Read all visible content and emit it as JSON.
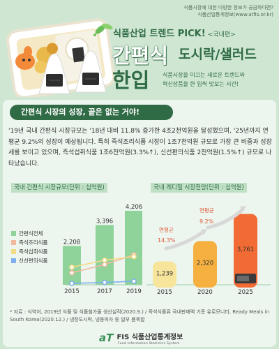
{
  "header": {
    "tagline": "식품시장에 대한 다양한 정보가 궁금하다면?",
    "site": "식품산업통계정보(www.atfis.or.kr)",
    "pick_label": "식품산업 트렌드 PICK!",
    "pick_tag": "<국내편>",
    "title_line1": "간편식",
    "title_line1_sub": "도시락/샐러드",
    "title_line2": "한입",
    "desc_line1": "식품시장을 이끄는 새로운 트렌드와",
    "desc_line2": "혁신상품을 한 입씩 맛보는 시간!"
  },
  "section_title": "간편식 시장의 성장, 끝은 없는 거야!",
  "paragraph": "'19년 국내 간편식 시장규모는 '18년 대비 11.8% 증가한 4조2천억원을 달성했으며, '25년까지 연평균 9.2%의 성장이 예상됩니다. 특히 즉석조리식품 시장이 1조7천억원 규모로 가장 큰 비중과 성장세를 보이고 있으며, 즉석섭취식품 1조6천억원(3.3%↑), 신선편의식품 2천억원(1.5%↑) 규모로 나타났습니다.",
  "chart_data": [
    {
      "type": "bar",
      "title": "국내 간편식 시장규모(단위 : 십억원)",
      "categories": [
        "2015",
        "2017",
        "2019"
      ],
      "series": [
        {
          "name": "간편식전체",
          "values": [
            2208,
            3396,
            4206
          ],
          "color": "#8fd39a"
        },
        {
          "name": "즉석조리식품",
          "values": [
            680,
            1150,
            1700
          ],
          "color": "#f2b8a0"
        },
        {
          "name": "즉석섭취식품",
          "values": [
            1000,
            1400,
            1600
          ],
          "color": "#f2dc85"
        },
        {
          "name": "신선편의식품",
          "values": [
            80,
            130,
            200
          ],
          "color": "#7fb0ee"
        }
      ],
      "legend_position": "left",
      "ylim": [
        0,
        4600
      ]
    },
    {
      "type": "bar",
      "title": "국내 레디밀 시장전망(단위 : 십억원)",
      "categories": [
        "2015",
        "2020",
        "2025"
      ],
      "values": [
        1239,
        2320,
        3761
      ],
      "colors": [
        "#f7e59b",
        "#f5b040",
        "#f26b35"
      ],
      "annotations": [
        {
          "label": "연평균",
          "value": "14.3%"
        },
        {
          "label": "연평균",
          "value": "9.2%"
        }
      ],
      "annotation_color": "#e05a3a",
      "ylim": [
        0,
        4000
      ]
    }
  ],
  "footnote": "* 자료 : 식약처, 2019년 식품 및 식품첨가물 생산실적(2020.9.) / 즉석식품류 국내판매액 기준 유로모니터, Ready Meals in South Korea(2020.12.) / 냉장도시락, 냉동피자 등 일부 품목합",
  "logo": {
    "mark": "aT",
    "name": "FIS 식품산업통계정보",
    "english": "Food Information Statistics System"
  }
}
